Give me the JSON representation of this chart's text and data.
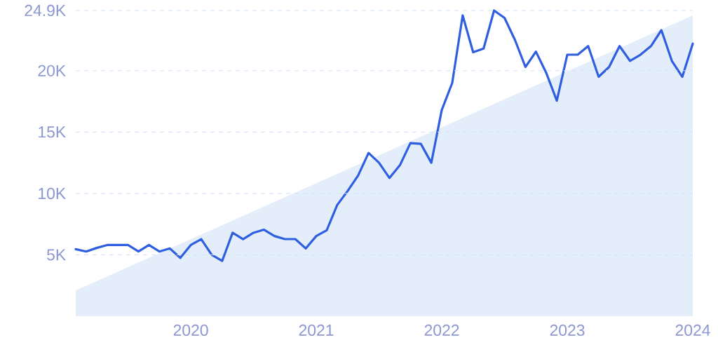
{
  "chart_data": {
    "type": "line",
    "x": [
      "2019-02",
      "2019-03",
      "2019-04",
      "2019-05",
      "2019-06",
      "2019-07",
      "2019-08",
      "2019-09",
      "2019-10",
      "2019-11",
      "2019-12",
      "2020-01",
      "2020-02",
      "2020-03",
      "2020-04",
      "2020-05",
      "2020-06",
      "2020-07",
      "2020-08",
      "2020-09",
      "2020-10",
      "2020-11",
      "2020-12",
      "2021-01",
      "2021-02",
      "2021-03",
      "2021-04",
      "2021-05",
      "2021-06",
      "2021-07",
      "2021-08",
      "2021-09",
      "2021-10",
      "2021-11",
      "2021-12",
      "2022-01",
      "2022-02",
      "2022-03",
      "2022-04",
      "2022-05",
      "2022-06",
      "2022-07",
      "2022-08",
      "2022-09",
      "2022-10",
      "2022-11",
      "2022-12",
      "2023-01",
      "2023-02",
      "2023-03",
      "2023-04",
      "2023-05",
      "2023-06",
      "2023-07",
      "2023-08",
      "2023-09",
      "2023-10",
      "2023-11",
      "2023-12",
      "2024-01"
    ],
    "series": [
      {
        "type": "area",
        "color": "#e4eefb",
        "x": [
          "2019-02",
          "2024-01"
        ],
        "values": [
          2100,
          24500
        ]
      },
      {
        "color": "#2f5fe0",
        "values": [
          5460,
          5270,
          5560,
          5800,
          5800,
          5800,
          5270,
          5800,
          5270,
          5520,
          4750,
          5800,
          6280,
          5000,
          4500,
          6800,
          6280,
          6800,
          7050,
          6530,
          6280,
          6280,
          5520,
          6530,
          7000,
          9060,
          10200,
          11460,
          13300,
          12500,
          11260,
          12300,
          14100,
          14040,
          12500,
          16800,
          19000,
          24500,
          21500,
          21800,
          24900,
          24300,
          22500,
          20300,
          21550,
          19800,
          17550,
          21300,
          21300,
          22000,
          19500,
          20300,
          22000,
          20800,
          21300,
          22000,
          23300,
          20800,
          19500,
          22200
        ]
      }
    ],
    "xlim": [
      "2019-02",
      "2024-01"
    ],
    "xticks": [
      "2020",
      "2021",
      "2022",
      "2023",
      "2024"
    ],
    "ylim": [
      0,
      24900
    ],
    "yticks": [
      {
        "value": 5000,
        "label": "5K"
      },
      {
        "value": 10000,
        "label": "10K"
      },
      {
        "value": 15000,
        "label": "15K"
      },
      {
        "value": 20000,
        "label": "20K"
      },
      {
        "value": 24900,
        "label": "24.9K"
      }
    ],
    "grid": "y",
    "marker": "none",
    "line_style": "solid"
  }
}
